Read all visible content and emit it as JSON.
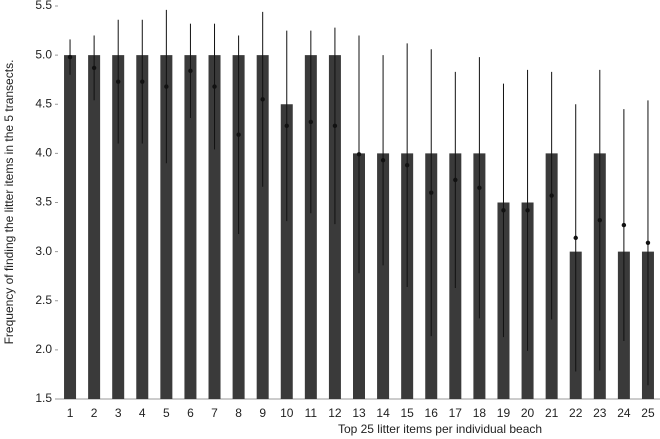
{
  "chart_data": {
    "type": "bar",
    "x_label": "Top 25 litter items per individual beach",
    "y_label": "Frequency of finding the litter items in the 5 transects.",
    "categories": [
      1,
      2,
      3,
      4,
      5,
      6,
      7,
      8,
      9,
      10,
      11,
      12,
      13,
      14,
      15,
      16,
      17,
      18,
      19,
      20,
      21,
      22,
      23,
      24,
      25
    ],
    "values": [
      5,
      5,
      5,
      5,
      5,
      5,
      5,
      5,
      5,
      4.5,
      5,
      5,
      4,
      4,
      4,
      4,
      4,
      4,
      3.5,
      3.5,
      4,
      3,
      4,
      3,
      3
    ],
    "color": "#3a3a3a",
    "means": [
      4.98,
      4.87,
      4.73,
      4.73,
      4.68,
      4.84,
      4.68,
      4.19,
      4.55,
      4.28,
      4.32,
      4.28,
      3.99,
      3.93,
      3.88,
      3.6,
      3.73,
      3.65,
      3.42,
      3.42,
      3.57,
      3.14,
      3.32,
      3.27,
      3.09
    ],
    "errors": [
      0.18,
      0.33,
      0.63,
      0.63,
      0.78,
      0.48,
      0.64,
      1.01,
      0.89,
      0.97,
      0.93,
      1.0,
      1.21,
      1.07,
      1.24,
      1.46,
      1.1,
      1.33,
      1.29,
      1.43,
      1.26,
      1.36,
      1.53,
      1.18,
      1.45
    ],
    "ylim": [
      1.5,
      5.5
    ],
    "yticks": [
      1.5,
      {
        "value": 2,
        "label": "2.0"
      },
      2.5,
      {
        "value": 3,
        "label": "3.0"
      },
      3.5,
      {
        "value": 4,
        "label": "4.0"
      },
      4.5,
      {
        "value": 5,
        "label": "5.0"
      },
      5.5
    ]
  }
}
